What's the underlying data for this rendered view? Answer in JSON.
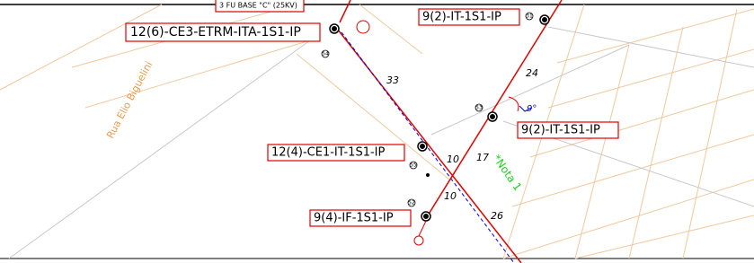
{
  "header": {
    "fuse_note": "3 FU BASE \"C\" (25KV)"
  },
  "labels": [
    "12(6)-CE3-ETRM-ITA-1S1-IP",
    "9(2)-IT-1S1-IP",
    "9(2)-IT-1S1-IP",
    "12(4)-CE1-IT-1S1-IP",
    "9(4)-IF-1S1-IP"
  ],
  "street": "Rua Elio Biguelini",
  "note": "*Nota 1",
  "angle": "9°",
  "spans": [
    "33",
    "24",
    "10",
    "17",
    "10",
    "26"
  ],
  "nodes": [
    "54",
    "31",
    "53",
    "55",
    "52"
  ]
}
